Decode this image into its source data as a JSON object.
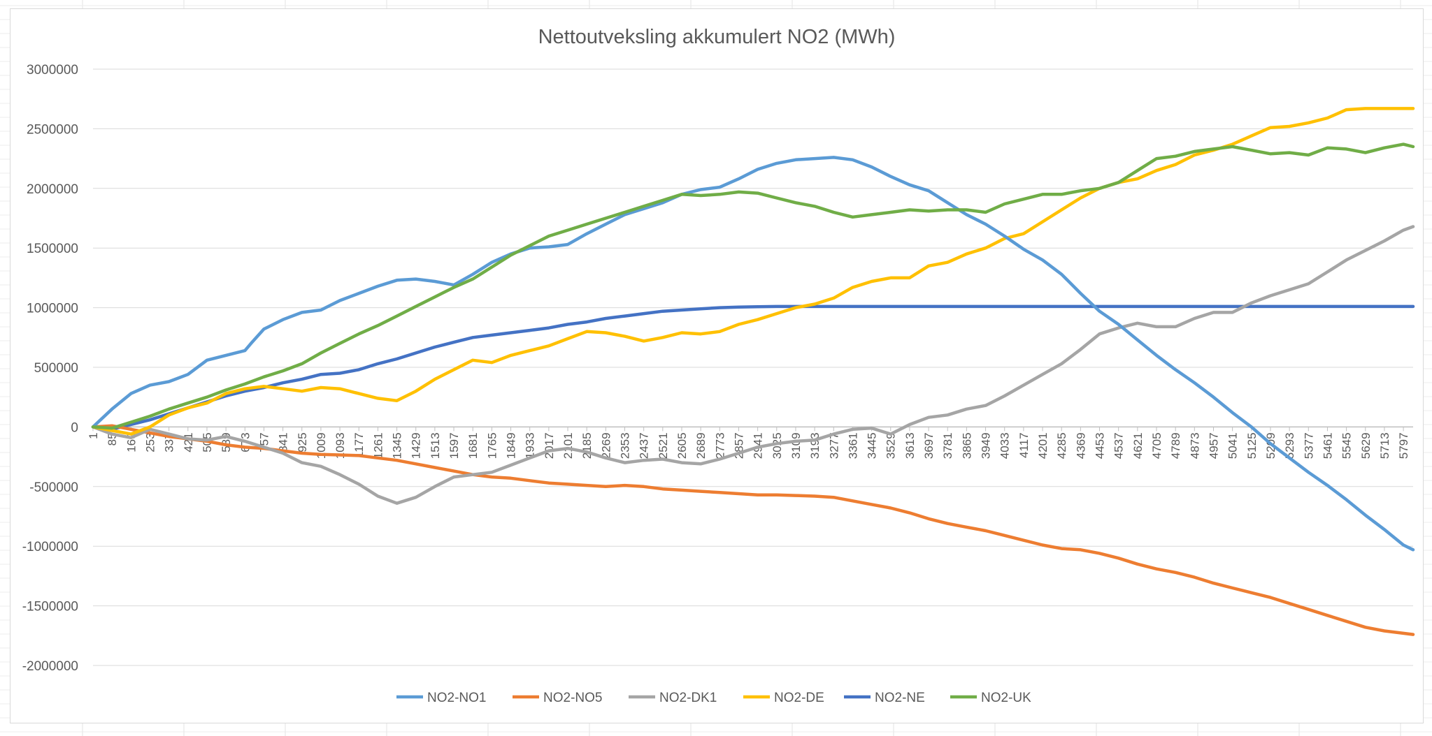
{
  "window": {
    "app": "Excel worksheet"
  },
  "chart_data": {
    "type": "line",
    "title": "Nettoutveksling akkumulert NO2 (MWh)",
    "xlabel": "",
    "ylabel": "",
    "ylim": [
      -2000000,
      3000000
    ],
    "y_ticks": [
      3000000,
      2500000,
      2000000,
      1500000,
      1000000,
      500000,
      0,
      -500000,
      -1000000,
      -1500000,
      -2000000
    ],
    "x_range": [
      1,
      5840
    ],
    "x_ticks": [
      "1",
      "85",
      "169",
      "253",
      "337",
      "421",
      "505",
      "589",
      "673",
      "757",
      "841",
      "925",
      "1009",
      "1093",
      "1177",
      "1261",
      "1345",
      "1429",
      "1513",
      "1597",
      "1681",
      "1765",
      "1849",
      "1933",
      "2017",
      "2101",
      "2185",
      "2269",
      "2353",
      "2437",
      "2521",
      "2605",
      "2689",
      "2773",
      "2857",
      "2941",
      "3025",
      "3109",
      "3193",
      "3277",
      "3361",
      "3445",
      "3529",
      "3613",
      "3697",
      "3781",
      "3865",
      "3949",
      "4033",
      "4117",
      "4201",
      "4285",
      "4369",
      "4453",
      "4537",
      "4621",
      "4705",
      "4789",
      "4873",
      "4957",
      "5041",
      "5125",
      "5209",
      "5293",
      "5377",
      "5461",
      "5545",
      "5629",
      "5713",
      "5797"
    ],
    "grid": true,
    "legend": "bottom",
    "series": [
      {
        "name": "NO2-NO1",
        "color": "#5b9bd5",
        "x": [
          1,
          85,
          169,
          253,
          337,
          421,
          505,
          589,
          673,
          700,
          757,
          841,
          925,
          1009,
          1093,
          1177,
          1261,
          1345,
          1429,
          1513,
          1597,
          1681,
          1765,
          1849,
          1933,
          2017,
          2101,
          2185,
          2269,
          2353,
          2437,
          2521,
          2605,
          2689,
          2773,
          2857,
          2941,
          3025,
          3109,
          3193,
          3277,
          3361,
          3445,
          3529,
          3613,
          3697,
          3781,
          3865,
          3949,
          4033,
          4117,
          4201,
          4285,
          4369,
          4453,
          4537,
          4621,
          4705,
          4789,
          4873,
          4957,
          5041,
          5125,
          5209,
          5293,
          5377,
          5461,
          5545,
          5629,
          5713,
          5797,
          5840
        ],
        "y": [
          0,
          150000,
          280000,
          350000,
          380000,
          440000,
          560000,
          600000,
          640000,
          700000,
          820000,
          900000,
          960000,
          980000,
          1060000,
          1120000,
          1180000,
          1230000,
          1240000,
          1220000,
          1190000,
          1280000,
          1380000,
          1450000,
          1500000,
          1510000,
          1530000,
          1620000,
          1700000,
          1780000,
          1830000,
          1880000,
          1950000,
          1990000,
          2010000,
          2080000,
          2160000,
          2210000,
          2240000,
          2250000,
          2260000,
          2240000,
          2180000,
          2100000,
          2030000,
          1980000,
          1880000,
          1780000,
          1700000,
          1600000,
          1490000,
          1400000,
          1280000,
          1120000,
          970000,
          860000,
          730000,
          600000,
          480000,
          370000,
          250000,
          120000,
          0,
          -140000,
          -260000,
          -380000,
          -490000,
          -610000,
          -740000,
          -860000,
          -990000,
          -1030000
        ]
      },
      {
        "name": "NO2-NO5",
        "color": "#ed7d31",
        "x": [
          1,
          85,
          169,
          253,
          337,
          421,
          505,
          589,
          673,
          757,
          841,
          925,
          1009,
          1093,
          1177,
          1261,
          1345,
          1429,
          1513,
          1597,
          1681,
          1765,
          1849,
          1933,
          2017,
          2101,
          2185,
          2269,
          2353,
          2437,
          2521,
          2605,
          2689,
          2773,
          2857,
          2941,
          3025,
          3109,
          3193,
          3277,
          3361,
          3445,
          3529,
          3613,
          3697,
          3781,
          3865,
          3949,
          4033,
          4117,
          4201,
          4285,
          4369,
          4453,
          4537,
          4621,
          4705,
          4789,
          4873,
          4957,
          5041,
          5125,
          5209,
          5293,
          5377,
          5461,
          5545,
          5629,
          5713,
          5797,
          5840
        ],
        "y": [
          0,
          10000,
          -20000,
          -50000,
          -80000,
          -100000,
          -120000,
          -150000,
          -170000,
          -180000,
          -200000,
          -220000,
          -230000,
          -235000,
          -240000,
          -260000,
          -280000,
          -310000,
          -340000,
          -370000,
          -400000,
          -420000,
          -430000,
          -450000,
          -470000,
          -480000,
          -490000,
          -500000,
          -490000,
          -500000,
          -520000,
          -530000,
          -540000,
          -550000,
          -560000,
          -570000,
          -570000,
          -575000,
          -580000,
          -590000,
          -620000,
          -650000,
          -680000,
          -720000,
          -770000,
          -810000,
          -840000,
          -870000,
          -910000,
          -950000,
          -990000,
          -1020000,
          -1030000,
          -1060000,
          -1100000,
          -1150000,
          -1190000,
          -1220000,
          -1260000,
          -1310000,
          -1350000,
          -1390000,
          -1430000,
          -1480000,
          -1530000,
          -1580000,
          -1630000,
          -1680000,
          -1710000,
          -1730000,
          -1740000
        ]
      },
      {
        "name": "NO2-DK1",
        "color": "#a5a5a5",
        "x": [
          1,
          85,
          169,
          253,
          337,
          421,
          505,
          589,
          673,
          757,
          841,
          925,
          1009,
          1093,
          1177,
          1261,
          1345,
          1429,
          1513,
          1597,
          1681,
          1765,
          1849,
          1933,
          2017,
          2101,
          2185,
          2269,
          2353,
          2437,
          2521,
          2605,
          2689,
          2773,
          2857,
          2941,
          3025,
          3109,
          3193,
          3277,
          3361,
          3445,
          3529,
          3613,
          3697,
          3781,
          3865,
          3949,
          4033,
          4117,
          4201,
          4285,
          4369,
          4453,
          4537,
          4621,
          4705,
          4789,
          4873,
          4957,
          5041,
          5125,
          5209,
          5293,
          5377,
          5461,
          5545,
          5629,
          5713,
          5797,
          5840
        ],
        "y": [
          0,
          -60000,
          -90000,
          -20000,
          -60000,
          -100000,
          -110000,
          -80000,
          -120000,
          -170000,
          -220000,
          -300000,
          -330000,
          -400000,
          -480000,
          -580000,
          -640000,
          -590000,
          -500000,
          -420000,
          -400000,
          -380000,
          -320000,
          -260000,
          -200000,
          -180000,
          -210000,
          -260000,
          -300000,
          -280000,
          -270000,
          -300000,
          -310000,
          -270000,
          -220000,
          -170000,
          -140000,
          -120000,
          -110000,
          -60000,
          -20000,
          -10000,
          -60000,
          20000,
          80000,
          100000,
          150000,
          180000,
          260000,
          350000,
          440000,
          530000,
          650000,
          780000,
          830000,
          870000,
          840000,
          840000,
          910000,
          960000,
          960000,
          1040000,
          1100000,
          1150000,
          1200000,
          1300000,
          1400000,
          1480000,
          1560000,
          1650000,
          1680000
        ]
      },
      {
        "name": "NO2-DE",
        "color": "#ffc000",
        "x": [
          1,
          85,
          169,
          253,
          337,
          421,
          505,
          589,
          673,
          757,
          841,
          925,
          1009,
          1093,
          1177,
          1261,
          1345,
          1429,
          1513,
          1597,
          1681,
          1765,
          1849,
          1933,
          2017,
          2101,
          2185,
          2269,
          2353,
          2437,
          2521,
          2605,
          2689,
          2773,
          2857,
          2941,
          3025,
          3109,
          3193,
          3277,
          3361,
          3445,
          3529,
          3613,
          3697,
          3781,
          3865,
          3949,
          4033,
          4117,
          4201,
          4285,
          4369,
          4453,
          4537,
          4621,
          4705,
          4789,
          4873,
          4957,
          5041,
          5125,
          5209,
          5293,
          5377,
          5461,
          5545,
          5629,
          5713,
          5797,
          5840
        ],
        "y": [
          0,
          -30000,
          -60000,
          0,
          100000,
          160000,
          200000,
          280000,
          320000,
          340000,
          320000,
          300000,
          330000,
          320000,
          280000,
          240000,
          220000,
          300000,
          400000,
          480000,
          560000,
          540000,
          600000,
          640000,
          680000,
          740000,
          800000,
          790000,
          760000,
          720000,
          750000,
          790000,
          780000,
          800000,
          860000,
          900000,
          950000,
          1000000,
          1030000,
          1080000,
          1170000,
          1220000,
          1250000,
          1250000,
          1350000,
          1380000,
          1450000,
          1500000,
          1580000,
          1620000,
          1720000,
          1820000,
          1920000,
          2000000,
          2050000,
          2080000,
          2150000,
          2200000,
          2280000,
          2320000,
          2370000,
          2440000,
          2510000,
          2520000,
          2550000,
          2590000,
          2660000,
          2670000,
          2670000,
          2670000,
          2670000
        ]
      },
      {
        "name": "NO2-NE",
        "color": "#4472c4",
        "x": [
          1,
          85,
          169,
          253,
          337,
          421,
          505,
          589,
          673,
          757,
          841,
          925,
          1009,
          1093,
          1177,
          1261,
          1345,
          1429,
          1513,
          1597,
          1681,
          1765,
          1849,
          1933,
          2017,
          2101,
          2185,
          2269,
          2353,
          2437,
          2521,
          2605,
          2689,
          2773,
          2857,
          2941,
          3025,
          3109,
          5840
        ],
        "y": [
          0,
          -20000,
          20000,
          60000,
          110000,
          160000,
          210000,
          260000,
          300000,
          330000,
          370000,
          400000,
          440000,
          450000,
          480000,
          530000,
          570000,
          620000,
          670000,
          710000,
          750000,
          770000,
          790000,
          810000,
          830000,
          860000,
          880000,
          910000,
          930000,
          950000,
          970000,
          980000,
          990000,
          1000000,
          1005000,
          1008000,
          1010000,
          1010000,
          1010000
        ]
      },
      {
        "name": "NO2-UK",
        "color": "#70ad47",
        "x": [
          1,
          85,
          169,
          253,
          337,
          421,
          505,
          589,
          673,
          757,
          841,
          925,
          1009,
          1093,
          1177,
          1261,
          1345,
          1429,
          1513,
          1597,
          1681,
          1765,
          1849,
          1933,
          2017,
          2101,
          2185,
          2269,
          2353,
          2437,
          2521,
          2605,
          2689,
          2773,
          2857,
          2941,
          3025,
          3109,
          3193,
          3277,
          3361,
          3445,
          3529,
          3613,
          3697,
          3781,
          3865,
          3949,
          4033,
          4117,
          4201,
          4285,
          4369,
          4453,
          4537,
          4621,
          4705,
          4789,
          4873,
          4957,
          5041,
          5125,
          5209,
          5293,
          5377,
          5461,
          5545,
          5629,
          5713,
          5797,
          5840
        ],
        "y": [
          0,
          -10000,
          40000,
          90000,
          150000,
          200000,
          250000,
          310000,
          360000,
          420000,
          470000,
          530000,
          620000,
          700000,
          780000,
          850000,
          930000,
          1010000,
          1090000,
          1170000,
          1240000,
          1340000,
          1440000,
          1520000,
          1600000,
          1650000,
          1700000,
          1750000,
          1800000,
          1850000,
          1900000,
          1950000,
          1940000,
          1950000,
          1970000,
          1960000,
          1920000,
          1880000,
          1850000,
          1800000,
          1760000,
          1780000,
          1800000,
          1820000,
          1810000,
          1820000,
          1820000,
          1800000,
          1870000,
          1910000,
          1950000,
          1950000,
          1980000,
          2000000,
          2050000,
          2150000,
          2250000,
          2270000,
          2310000,
          2330000,
          2350000,
          2320000,
          2290000,
          2300000,
          2280000,
          2340000,
          2330000,
          2300000,
          2340000,
          2370000,
          2350000
        ]
      }
    ]
  }
}
